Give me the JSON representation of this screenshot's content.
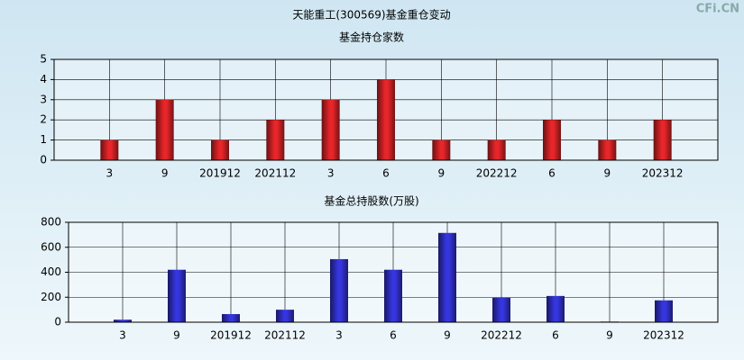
{
  "title": "天能重工(300569)基金重仓变动",
  "watermark": "CFi.CN",
  "chart_data": [
    {
      "type": "bar",
      "title": "基金持仓家数",
      "categories": [
        "3",
        "9",
        "201912",
        "202112",
        "3",
        "6",
        "9",
        "202212",
        "6",
        "9",
        "202312"
      ],
      "values": [
        1,
        3,
        1,
        2,
        3,
        4,
        1,
        1,
        2,
        1,
        2
      ],
      "color": "#e8262a",
      "ylim": [
        0,
        5
      ],
      "yticks": [
        0,
        1,
        2,
        3,
        4,
        5
      ],
      "grid": true
    },
    {
      "type": "bar",
      "title": "基金总持股数(万股)",
      "categories": [
        "3",
        "9",
        "201912",
        "202112",
        "3",
        "6",
        "9",
        "202212",
        "6",
        "9",
        "202312"
      ],
      "values": [
        20,
        420,
        65,
        100,
        505,
        420,
        715,
        195,
        210,
        5,
        175
      ],
      "color": "#3636e0",
      "ylim": [
        0,
        800
      ],
      "yticks": [
        0,
        200,
        400,
        600,
        800
      ],
      "grid": true
    }
  ]
}
